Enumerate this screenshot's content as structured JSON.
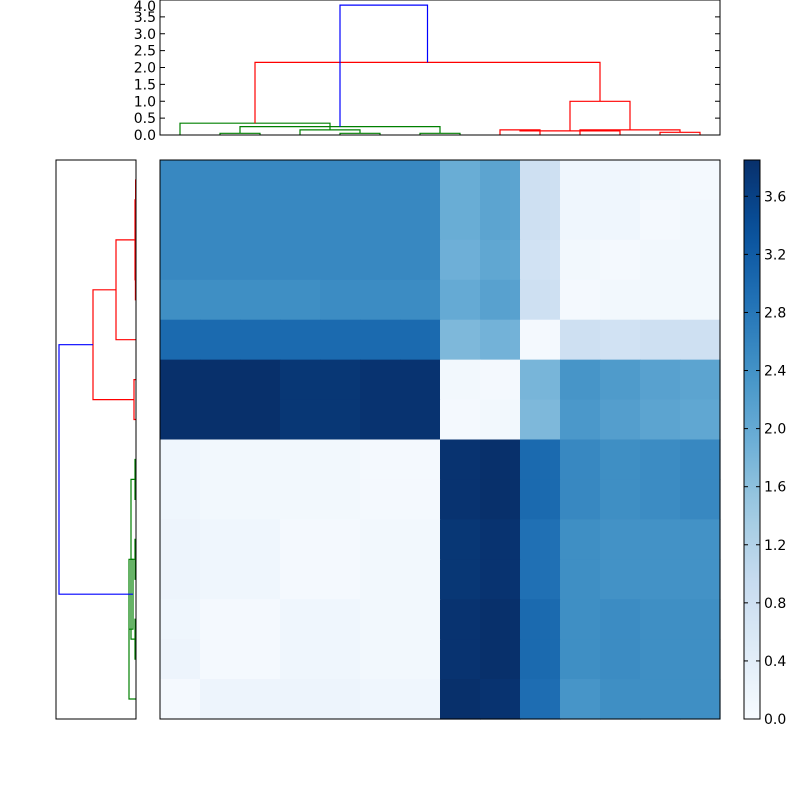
{
  "chart_data": [
    {
      "type": "dendrogram",
      "panel": "top",
      "orientation": "top",
      "ylim": [
        0,
        4.0
      ],
      "yticks": [
        "0.0",
        "0.5",
        "1.0",
        "1.5",
        "2.0",
        "2.5",
        "3.0",
        "3.5",
        "4.0"
      ],
      "leaves": 14,
      "merges": [
        {
          "a": 2,
          "b": 3,
          "h": 0.05,
          "color": "green"
        },
        {
          "a": 5,
          "b": 6,
          "h": 0.05,
          "color": "green"
        },
        {
          "a": 7,
          "b": 8,
          "h": 0.05,
          "color": "green"
        },
        {
          "a": 4,
          "b": 16,
          "h": 0.15,
          "color": "green"
        },
        {
          "a": 15,
          "b": 17,
          "h": 0.25,
          "color": "green"
        },
        {
          "a": 1,
          "b": 18,
          "h": 0.35,
          "color": "green"
        },
        {
          "a": 9,
          "b": 10,
          "h": 0.15,
          "color": "red"
        },
        {
          "a": 13,
          "b": 14,
          "h": 0.08,
          "color": "red"
        },
        {
          "a": 12,
          "b": 21,
          "h": 0.12,
          "color": "red"
        },
        {
          "a": 11,
          "b": 22,
          "h": 0.15,
          "color": "red"
        },
        {
          "a": 23,
          "b": 24,
          "h": 1.0,
          "color": "red"
        },
        {
          "a": 20,
          "b": 25,
          "h": 2.15,
          "color": "red"
        },
        {
          "a": 19,
          "b": 26,
          "h": 3.85,
          "color": "blue"
        }
      ]
    },
    {
      "type": "dendrogram",
      "panel": "left",
      "orientation": "left",
      "xlim": [
        3.85,
        0
      ],
      "leaves": 14,
      "merges": [
        {
          "a": 1,
          "b": 2,
          "h": 0.02,
          "color": "red"
        },
        {
          "a": 3,
          "b": 4,
          "h": 0.03,
          "color": "red"
        },
        {
          "a": 15,
          "b": 16,
          "h": 0.05,
          "color": "red"
        },
        {
          "a": 17,
          "b": 5,
          "h": 1.0,
          "color": "red"
        },
        {
          "a": 6,
          "b": 7,
          "h": 0.1,
          "color": "red"
        },
        {
          "a": 18,
          "b": 19,
          "h": 2.15,
          "color": "red"
        },
        {
          "a": 8,
          "b": 9,
          "h": 0.05,
          "color": "green"
        },
        {
          "a": 10,
          "b": 11,
          "h": 0.05,
          "color": "green"
        },
        {
          "a": 12,
          "b": 13,
          "h": 0.05,
          "color": "green"
        },
        {
          "a": 22,
          "b": 14,
          "h": 0.35,
          "color": "green"
        },
        {
          "a": 21,
          "b": 23,
          "h": 0.25,
          "color": "green"
        },
        {
          "a": 24,
          "b": 25,
          "h": 0.15,
          "color": "green"
        },
        {
          "a": 20,
          "b": 26,
          "h": 3.85,
          "color": "blue"
        }
      ]
    },
    {
      "type": "heatmap",
      "panel": "main",
      "rows": 14,
      "cols": 14,
      "colormap": "Blues",
      "vmin": 0.0,
      "vmax": 3.85,
      "values": [
        [
          2.55,
          2.55,
          2.55,
          2.55,
          2.55,
          2.55,
          2.55,
          1.95,
          2.1,
          0.8,
          0.15,
          0.15,
          0.1,
          0.05
        ],
        [
          2.55,
          2.55,
          2.55,
          2.55,
          2.55,
          2.55,
          2.55,
          1.95,
          2.1,
          0.8,
          0.15,
          0.15,
          0.05,
          0.1
        ],
        [
          2.55,
          2.55,
          2.55,
          2.55,
          2.55,
          2.55,
          2.55,
          1.9,
          2.05,
          0.75,
          0.1,
          0.05,
          0.1,
          0.1
        ],
        [
          2.45,
          2.45,
          2.45,
          2.45,
          2.5,
          2.5,
          2.5,
          2.0,
          2.15,
          0.8,
          0.05,
          0.1,
          0.1,
          0.1
        ],
        [
          3.0,
          3.0,
          3.0,
          3.0,
          3.0,
          3.0,
          3.0,
          1.75,
          1.85,
          0.05,
          0.8,
          0.75,
          0.8,
          0.8
        ],
        [
          3.85,
          3.85,
          3.85,
          3.75,
          3.75,
          3.8,
          3.8,
          0.1,
          0.05,
          1.8,
          2.35,
          2.25,
          2.15,
          2.1
        ],
        [
          3.85,
          3.85,
          3.85,
          3.75,
          3.75,
          3.8,
          3.8,
          0.05,
          0.1,
          1.75,
          2.3,
          2.2,
          2.1,
          2.05
        ],
        [
          0.15,
          0.1,
          0.1,
          0.1,
          0.1,
          0.05,
          0.05,
          3.8,
          3.85,
          3.0,
          2.55,
          2.45,
          2.5,
          2.55
        ],
        [
          0.15,
          0.1,
          0.1,
          0.1,
          0.1,
          0.05,
          0.05,
          3.8,
          3.85,
          3.0,
          2.55,
          2.45,
          2.5,
          2.55
        ],
        [
          0.2,
          0.15,
          0.15,
          0.05,
          0.05,
          0.1,
          0.1,
          3.75,
          3.8,
          2.9,
          2.45,
          2.4,
          2.4,
          2.4
        ],
        [
          0.2,
          0.15,
          0.15,
          0.05,
          0.05,
          0.1,
          0.1,
          3.75,
          3.8,
          2.9,
          2.45,
          2.4,
          2.4,
          2.4
        ],
        [
          0.15,
          0.05,
          0.05,
          0.15,
          0.15,
          0.1,
          0.1,
          3.8,
          3.85,
          3.0,
          2.45,
          2.5,
          2.45,
          2.45
        ],
        [
          0.2,
          0.05,
          0.05,
          0.15,
          0.15,
          0.1,
          0.1,
          3.8,
          3.85,
          3.0,
          2.45,
          2.5,
          2.45,
          2.45
        ],
        [
          0.05,
          0.2,
          0.2,
          0.2,
          0.2,
          0.15,
          0.15,
          3.85,
          3.8,
          2.95,
          2.35,
          2.45,
          2.45,
          2.45
        ]
      ]
    },
    {
      "type": "colorbar",
      "panel": "right",
      "colormap": "Blues",
      "vmin": 0.0,
      "vmax": 3.85,
      "ticks": [
        "0.0",
        "0.4",
        "0.8",
        "1.2",
        "1.6",
        "2.0",
        "2.4",
        "2.8",
        "3.2",
        "3.6"
      ]
    }
  ],
  "colors": {
    "green": "#008000",
    "red": "#ff0000",
    "blue": "#0000ff",
    "frame": "#000000",
    "blues_ramp": [
      "#f7fbff",
      "#deebf7",
      "#c6dbef",
      "#9ecae1",
      "#6baed6",
      "#4292c6",
      "#2171b5",
      "#08519c",
      "#08306b"
    ]
  }
}
